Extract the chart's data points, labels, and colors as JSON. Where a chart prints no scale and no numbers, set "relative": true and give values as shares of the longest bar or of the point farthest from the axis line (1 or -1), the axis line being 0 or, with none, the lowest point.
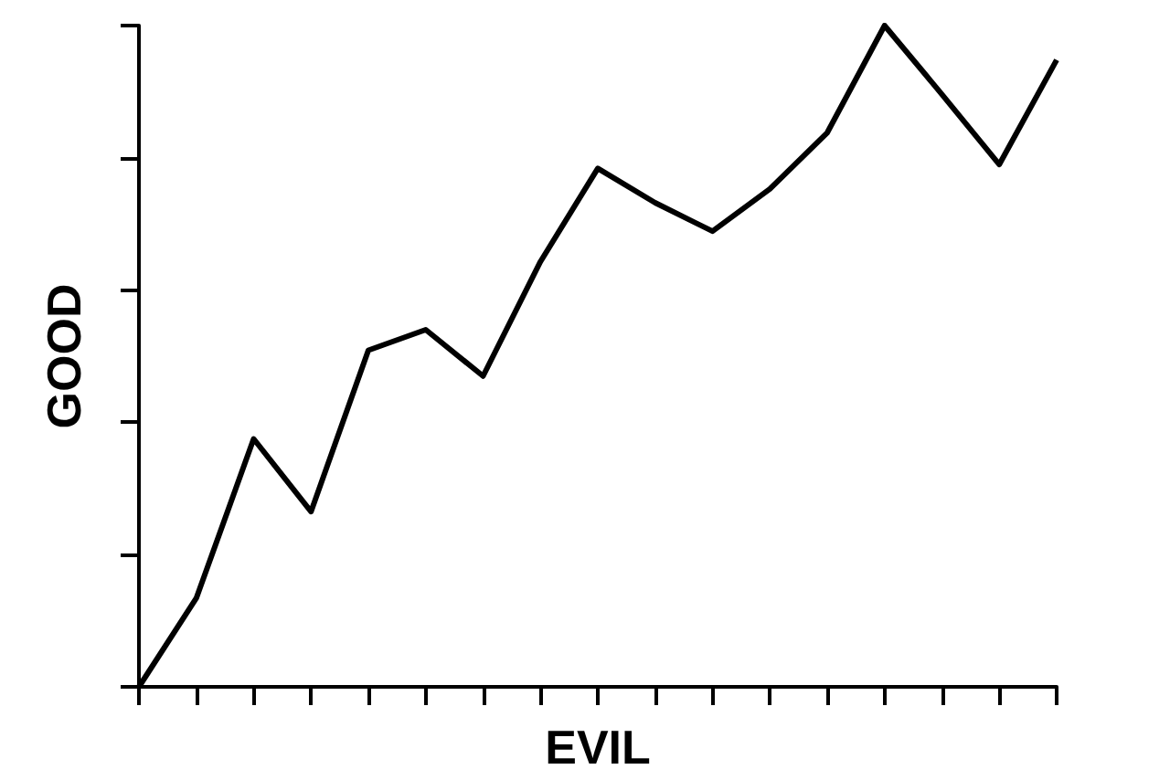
{
  "chart_data": {
    "type": "line",
    "relative": true,
    "xlabel": "EVIL",
    "ylabel": "GOOD",
    "color": "#000000",
    "marker": "none",
    "grid": false,
    "categories": [
      null,
      null,
      null,
      null,
      null,
      null,
      null,
      null,
      null,
      null,
      null,
      null,
      null,
      null,
      null,
      null,
      null
    ],
    "values": [
      0,
      0.134,
      0.375,
      0.265,
      0.509,
      0.54,
      0.47,
      0.643,
      0.784,
      0.732,
      0.689,
      0.753,
      0.838,
      1,
      0.896,
      0.79,
      0.948
    ]
  }
}
